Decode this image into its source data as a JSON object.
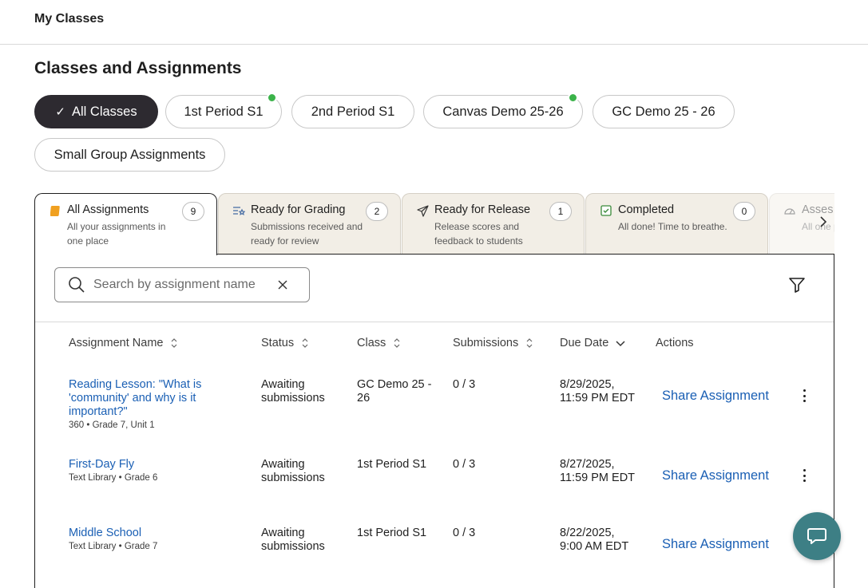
{
  "header": {
    "title": "My Classes"
  },
  "section_title": "Classes and Assignments",
  "class_filters": [
    {
      "label": "All Classes",
      "active": true
    },
    {
      "label": "1st Period S1",
      "has_new": true
    },
    {
      "label": "2nd Period S1"
    },
    {
      "label": "Canvas Demo 25-26",
      "has_new": true
    },
    {
      "label": "GC Demo 25 - 26"
    },
    {
      "label": "Small Group Assignments"
    }
  ],
  "tabs": [
    {
      "title": "All Assignments",
      "desc": "All your assignments in one place",
      "count": "9",
      "icon": "assignment-book-icon",
      "active": true
    },
    {
      "title": "Ready for Grading",
      "desc": "Submissions received and ready for review",
      "count": "2",
      "icon": "grading-list-icon"
    },
    {
      "title": "Ready for Release",
      "desc": "Release scores and feedback to students",
      "count": "1",
      "icon": "send-icon"
    },
    {
      "title": "Completed",
      "desc": "All done! Time to breathe.",
      "count": "0",
      "icon": "checkbox-icon"
    },
    {
      "title": "Asses",
      "desc": "All one pl",
      "icon": "gauge-icon"
    }
  ],
  "search": {
    "placeholder": "Search by assignment name"
  },
  "table": {
    "headers": [
      "Assignment Name",
      "Status",
      "Class",
      "Submissions",
      "Due Date",
      "Actions"
    ],
    "rows": [
      {
        "name": "Reading Lesson: \"What is 'community' and why is it important?\"",
        "meta": "360 • Grade 7, Unit 1",
        "status": "Awaiting submissions",
        "class": "GC Demo 25 - 26",
        "submissions": "0 / 3",
        "due": "8/29/2025, 11:59 PM EDT",
        "action": "Share Assignment"
      },
      {
        "name": "First-Day Fly",
        "meta": "Text Library • Grade 6",
        "status": "Awaiting submissions",
        "class": "1st Period S1",
        "submissions": "0 / 3",
        "due": "8/27/2025, 11:59 PM EDT",
        "action": "Share Assignment"
      },
      {
        "name": "Middle School",
        "meta": "Text Library • Grade 7",
        "status": "Awaiting submissions",
        "class": "1st Period S1",
        "submissions": "0 / 3",
        "due": "8/22/2025, 9:00 AM EDT",
        "action": "Share Assignment"
      }
    ]
  },
  "colors": {
    "accent": "#1a5fb4",
    "active_chip": "#2d2a30",
    "new_dot": "#3bb34a",
    "help_button": "#3d7f85",
    "tab_bg": "#f2eee6"
  }
}
